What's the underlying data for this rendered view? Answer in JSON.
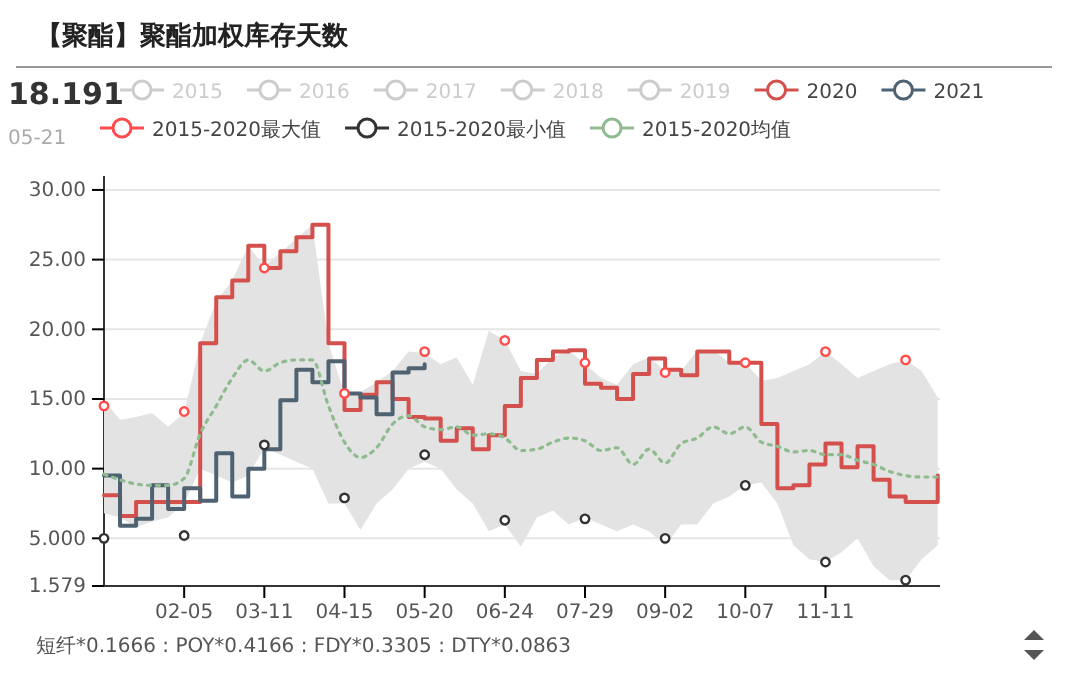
{
  "chart_data": {
    "type": "step",
    "title": "【聚酯】聚酯加权库存天数",
    "annotations": [
      "18.191",
      "05-21",
      "短纤*0.1666 : POY*0.4166 : FDY*0.3305 : DTY*0.0863"
    ],
    "x": [
      "--01-01",
      "--01-08",
      "--01-15",
      "--01-22",
      "--01-29",
      "--02-05",
      "--02-12",
      "--02-19",
      "--02-26",
      "--03-04",
      "--03-11",
      "--03-18",
      "--03-25",
      "--04-01",
      "--04-08",
      "--04-15",
      "--04-22",
      "--04-29",
      "--05-06",
      "--05-13",
      "--05-20",
      "--05-27",
      "--06-03",
      "--06-10",
      "--06-17",
      "--06-24",
      "--07-01",
      "--07-08",
      "--07-15",
      "--07-22",
      "--07-29",
      "--08-05",
      "--08-12",
      "--08-19",
      "--08-26",
      "--09-02",
      "--09-09",
      "--09-16",
      "--09-23",
      "--09-30",
      "--10-07",
      "--10-14",
      "--10-21",
      "--10-28",
      "--11-04",
      "--11-11",
      "--11-18",
      "--11-25",
      "--12-02",
      "--12-09",
      "--12-16",
      "--12-23",
      "--12-30"
    ],
    "series": [
      {
        "name": "2015",
        "color": "#cccccc",
        "type": "line",
        "values": [
          null,
          null,
          null,
          null,
          null,
          null,
          null,
          null,
          null,
          null,
          null,
          null,
          null,
          null,
          null,
          null,
          null,
          null,
          null,
          null,
          null,
          null,
          null,
          null,
          null,
          null,
          null,
          null,
          null,
          null,
          null,
          null,
          null,
          null,
          null,
          null,
          null,
          null,
          null,
          null,
          null,
          null,
          null,
          null,
          null,
          null,
          null,
          null,
          null,
          null,
          null,
          null,
          null
        ]
      },
      {
        "name": "2016",
        "color": "#cccccc",
        "type": "line",
        "values": [
          null,
          null,
          null,
          null,
          null,
          null,
          null,
          null,
          null,
          null,
          null,
          null,
          null,
          null,
          null,
          null,
          null,
          null,
          null,
          null,
          null,
          null,
          null,
          null,
          null,
          null,
          null,
          null,
          null,
          null,
          null,
          null,
          null,
          null,
          null,
          null,
          null,
          null,
          null,
          null,
          null,
          null,
          null,
          null,
          null,
          null,
          null,
          null,
          null,
          null,
          null,
          null,
          null
        ]
      },
      {
        "name": "2017",
        "color": "#cccccc",
        "type": "line",
        "values": [
          null,
          null,
          null,
          null,
          null,
          null,
          null,
          null,
          null,
          null,
          null,
          null,
          null,
          null,
          null,
          null,
          null,
          null,
          null,
          null,
          null,
          null,
          null,
          null,
          null,
          null,
          null,
          null,
          null,
          null,
          null,
          null,
          null,
          null,
          null,
          null,
          null,
          null,
          null,
          null,
          null,
          null,
          null,
          null,
          null,
          null,
          null,
          null,
          null,
          null,
          null,
          null,
          null
        ]
      },
      {
        "name": "2018",
        "color": "#cccccc",
        "type": "line",
        "values": [
          null,
          null,
          null,
          null,
          null,
          null,
          null,
          null,
          null,
          null,
          null,
          null,
          null,
          null,
          null,
          null,
          null,
          null,
          null,
          null,
          null,
          null,
          null,
          null,
          null,
          null,
          null,
          null,
          null,
          null,
          null,
          null,
          null,
          null,
          null,
          null,
          null,
          null,
          null,
          null,
          null,
          null,
          null,
          null,
          null,
          null,
          null,
          null,
          null,
          null,
          null,
          null,
          null
        ]
      },
      {
        "name": "2019",
        "color": "#cccccc",
        "type": "line",
        "values": [
          null,
          null,
          null,
          null,
          null,
          null,
          null,
          null,
          null,
          null,
          null,
          null,
          null,
          null,
          null,
          null,
          null,
          null,
          null,
          null,
          null,
          null,
          null,
          null,
          null,
          null,
          null,
          null,
          null,
          null,
          null,
          null,
          null,
          null,
          null,
          null,
          null,
          null,
          null,
          null,
          null,
          null,
          null,
          null,
          null,
          null,
          null,
          null,
          null,
          null,
          null,
          null,
          null
        ]
      },
      {
        "name": "2020",
        "color": "#d4504c",
        "marker": "none",
        "values": [
          8.1,
          6.6,
          7.6,
          7.6,
          7.6,
          7.6,
          19.0,
          22.3,
          23.5,
          26.0,
          24.4,
          25.6,
          26.6,
          27.5,
          19.0,
          14.2,
          15.3,
          16.2,
          15.0,
          13.7,
          13.6,
          12.0,
          12.9,
          11.4,
          12.4,
          14.5,
          16.5,
          17.8,
          18.4,
          18.5,
          16.1,
          15.8,
          15.0,
          16.8,
          17.9,
          17.1,
          16.7,
          18.4,
          18.4,
          17.6,
          17.6,
          13.2,
          8.6,
          8.8,
          10.3,
          11.8,
          10.1,
          11.6,
          9.2,
          8.0,
          7.6,
          7.6,
          9.5
        ]
      },
      {
        "name": "2021",
        "color": "#4f6272",
        "marker": "none",
        "values": [
          9.5,
          5.9,
          6.4,
          8.8,
          7.1,
          8.6,
          7.7,
          11.1,
          8.0,
          10.0,
          11.4,
          14.9,
          17.1,
          16.2,
          17.7,
          15.4,
          15.1,
          13.9,
          16.9,
          17.2,
          17.5,
          null,
          null,
          null,
          null,
          null,
          null,
          null,
          null,
          null,
          null,
          null,
          null,
          null,
          null,
          null,
          null,
          null,
          null,
          null,
          null,
          null,
          null,
          null,
          null,
          null,
          null,
          null,
          null,
          null,
          null,
          null,
          null
        ]
      },
      {
        "name": "2015-2020最大值",
        "color": "#ff4d4d",
        "type": "scatter",
        "x": [
          "--01-01",
          "--02-05",
          "--03-11",
          "--04-15",
          "--05-20",
          "--06-24",
          "--07-29",
          "--09-02",
          "--10-07",
          "--11-11",
          "--12-16"
        ],
        "values": [
          14.5,
          14.1,
          24.4,
          15.4,
          18.4,
          19.2,
          17.6,
          16.9,
          17.6,
          18.4,
          17.8
        ]
      },
      {
        "name": "2015-2020最小值",
        "color": "#333333",
        "type": "scatter",
        "x": [
          "--01-01",
          "--02-05",
          "--03-11",
          "--04-15",
          "--05-20",
          "--06-24",
          "--07-29",
          "--09-02",
          "--10-07",
          "--11-11",
          "--12-16"
        ],
        "values": [
          5.0,
          5.2,
          11.7,
          7.9,
          11.0,
          6.3,
          6.4,
          5.0,
          8.8,
          3.3,
          2.0
        ]
      },
      {
        "name": "2015-2020均值",
        "color": "#8fbc8f",
        "type": "line",
        "line_style": "dotted",
        "marker": "none",
        "values": [
          9.6,
          9.2,
          8.9,
          8.8,
          8.8,
          9.3,
          12.5,
          14.5,
          16.5,
          17.8,
          17.0,
          17.6,
          17.8,
          17.8,
          14.5,
          11.9,
          10.8,
          11.5,
          13.2,
          13.8,
          13.0,
          12.8,
          13.0,
          12.4,
          12.5,
          12.2,
          11.3,
          11.4,
          11.9,
          12.2,
          12.0,
          11.3,
          11.5,
          10.3,
          11.4,
          10.4,
          11.8,
          12.2,
          13.0,
          12.5,
          13.0,
          11.9,
          11.6,
          11.2,
          11.3,
          11.0,
          11.0,
          10.6,
          10.3,
          9.8,
          9.5,
          9.4,
          9.4
        ],
        "lower": [
          6.8,
          6.5,
          5.8,
          6.2,
          6.5,
          7.5,
          10.0,
          9.5,
          9.0,
          9.5,
          11.5,
          11.0,
          10.5,
          10.0,
          7.5,
          7.5,
          5.6,
          7.5,
          8.5,
          10.0,
          10.5,
          10.0,
          8.5,
          7.5,
          5.5,
          6.0,
          4.4,
          6.5,
          7.0,
          6.0,
          6.5,
          6.0,
          5.5,
          6.0,
          5.5,
          4.5,
          6.0,
          6.0,
          7.5,
          8.0,
          8.8,
          9.0,
          7.5,
          4.5,
          3.5,
          3.3,
          4.0,
          5.0,
          3.0,
          2.0,
          2.0,
          3.5,
          4.5
        ],
        "upper": [
          14.9,
          13.5,
          13.7,
          14.0,
          13.0,
          14.0,
          19.0,
          22.0,
          23.5,
          26.0,
          24.5,
          25.5,
          26.5,
          27.5,
          19.0,
          15.3,
          15.5,
          16.2,
          17.0,
          18.4,
          18.3,
          17.5,
          18.0,
          16.0,
          19.9,
          19.2,
          17.0,
          16.8,
          18.0,
          18.5,
          17.5,
          16.5,
          16.0,
          17.5,
          18.0,
          17.0,
          17.0,
          18.5,
          18.5,
          17.6,
          17.6,
          16.3,
          16.5,
          17.0,
          17.5,
          18.4,
          17.5,
          16.5,
          17.0,
          17.5,
          17.8,
          17.0,
          15.1
        ]
      }
    ],
    "xlim": [
      "--01-01",
      "--12-31"
    ],
    "xticks": [
      {
        "value": "--02-05",
        "label": "02-05"
      },
      {
        "value": "--03-11",
        "label": "03-11"
      },
      {
        "value": "--04-15",
        "label": "04-15"
      },
      {
        "value": "--05-20",
        "label": "05-20"
      },
      {
        "value": "--06-24",
        "label": "06-24"
      },
      {
        "value": "--07-29",
        "label": "07-29"
      },
      {
        "value": "--09-02",
        "label": "09-02"
      },
      {
        "value": "--10-07",
        "label": "10-07"
      },
      {
        "value": "--11-11",
        "label": "11-11"
      }
    ],
    "ylim": [
      1.579,
      31
    ],
    "yticks": [
      1.579,
      {
        "value": 5,
        "label": "5.000"
      },
      {
        "value": 10,
        "label": "10.00"
      },
      {
        "value": 15,
        "label": "15.00"
      },
      {
        "value": 20,
        "label": "20.00"
      },
      {
        "value": 25,
        "label": "25.00"
      },
      {
        "value": 30,
        "label": "30.00"
      }
    ],
    "grid": "y",
    "legend": "top",
    "marker": "circle"
  }
}
